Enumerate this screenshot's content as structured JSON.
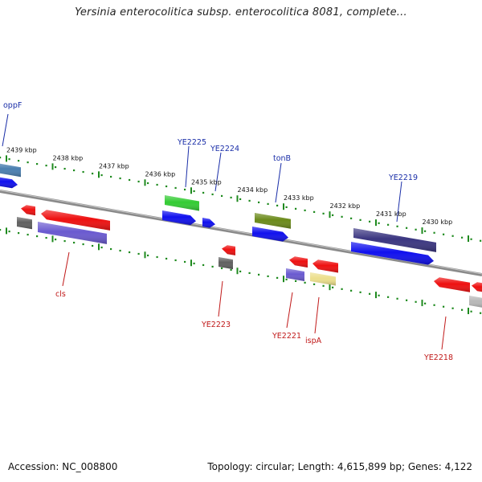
{
  "title": "Yersinia enterocolitica subsp. enterocolitica 8081, complete...",
  "footer": {
    "accession": "Accession: NC_008800",
    "summary": "Topology: circular; Length: 4,615,899 bp; Genes: 4,122"
  },
  "ruler": {
    "labels": [
      "2439 kbp",
      "2438 kbp",
      "2437 kbp",
      "2436 kbp",
      "2435 kbp",
      "2434 kbp",
      "2433 kbp",
      "2432 kbp",
      "2431 kbp",
      "2430 kbp"
    ]
  },
  "gene_labels_top": [
    "oppF",
    "YE2225",
    "YE2224",
    "tonB",
    "YE2219"
  ],
  "gene_labels_bottom": [
    "cls",
    "YE2223",
    "YE2221",
    "ispA",
    "YE2218"
  ],
  "colors": {
    "backbone": "#888888",
    "tick_green": "#1e8a1e",
    "top_label": "#1a2ea8",
    "bottom_label": "#c01818",
    "blue": "#1010ee",
    "red": "#ee1010",
    "green": "#33cc33",
    "olive": "#6b8a1a",
    "steel": "#4a7fb0",
    "dark_purple": "#3a3580",
    "purple": "#6a5ad0",
    "gray": "#606060",
    "light_gray": "#b8b8b8",
    "yellow": "#ecdf8c"
  }
}
